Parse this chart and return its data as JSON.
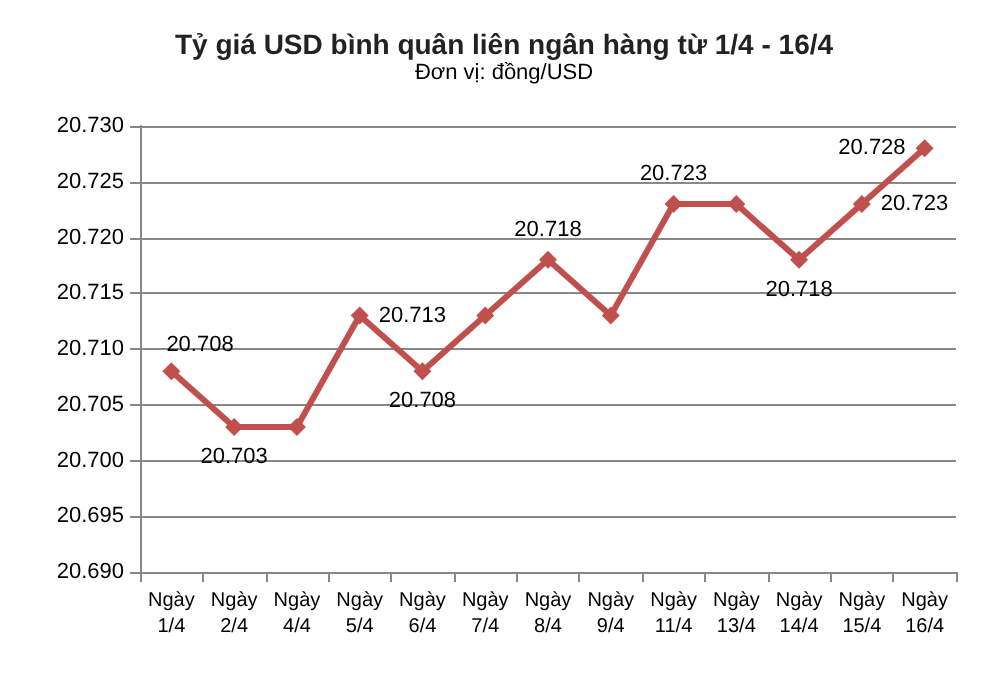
{
  "chart_data": {
    "type": "line",
    "title": "Tỷ giá USD bình quân liên ngân hàng từ 1/4 - 16/4",
    "subtitle": "Đơn vị: đồng/USD",
    "categories": [
      "Ngày 1/4",
      "Ngày 2/4",
      "Ngày 4/4",
      "Ngày 5/4",
      "Ngày 6/4",
      "Ngày 7/4",
      "Ngày 8/4",
      "Ngày 9/4",
      "Ngày 11/4",
      "Ngày 13/4",
      "Ngày 14/4",
      "Ngày 15/4",
      "Ngày 16/4"
    ],
    "values": [
      20.708,
      20.703,
      20.703,
      20.713,
      20.708,
      20.713,
      20.718,
      20.713,
      20.723,
      20.723,
      20.718,
      20.723,
      20.728
    ],
    "value_labels": [
      "20.708",
      "20.703",
      null,
      "20.713",
      "20.708",
      null,
      "20.718",
      null,
      "20.723",
      null,
      "20.718",
      "20.723",
      "20.728"
    ],
    "color": "#c0504d",
    "ylim": [
      20.69,
      20.73
    ],
    "yticks": [
      {
        "value": 20.69,
        "label": "20.690"
      },
      {
        "value": 20.695,
        "label": "20.695"
      },
      {
        "value": 20.7,
        "label": "20.700"
      },
      {
        "value": 20.705,
        "label": "20.705"
      },
      {
        "value": 20.71,
        "label": "20.710"
      },
      {
        "value": 20.715,
        "label": "20.715"
      },
      {
        "value": 20.72,
        "label": "20.720"
      },
      {
        "value": 20.725,
        "label": "20.725"
      },
      {
        "value": 20.73,
        "label": "20.730"
      }
    ],
    "grid": "y",
    "marker": "diamond",
    "line_style": "solid"
  }
}
